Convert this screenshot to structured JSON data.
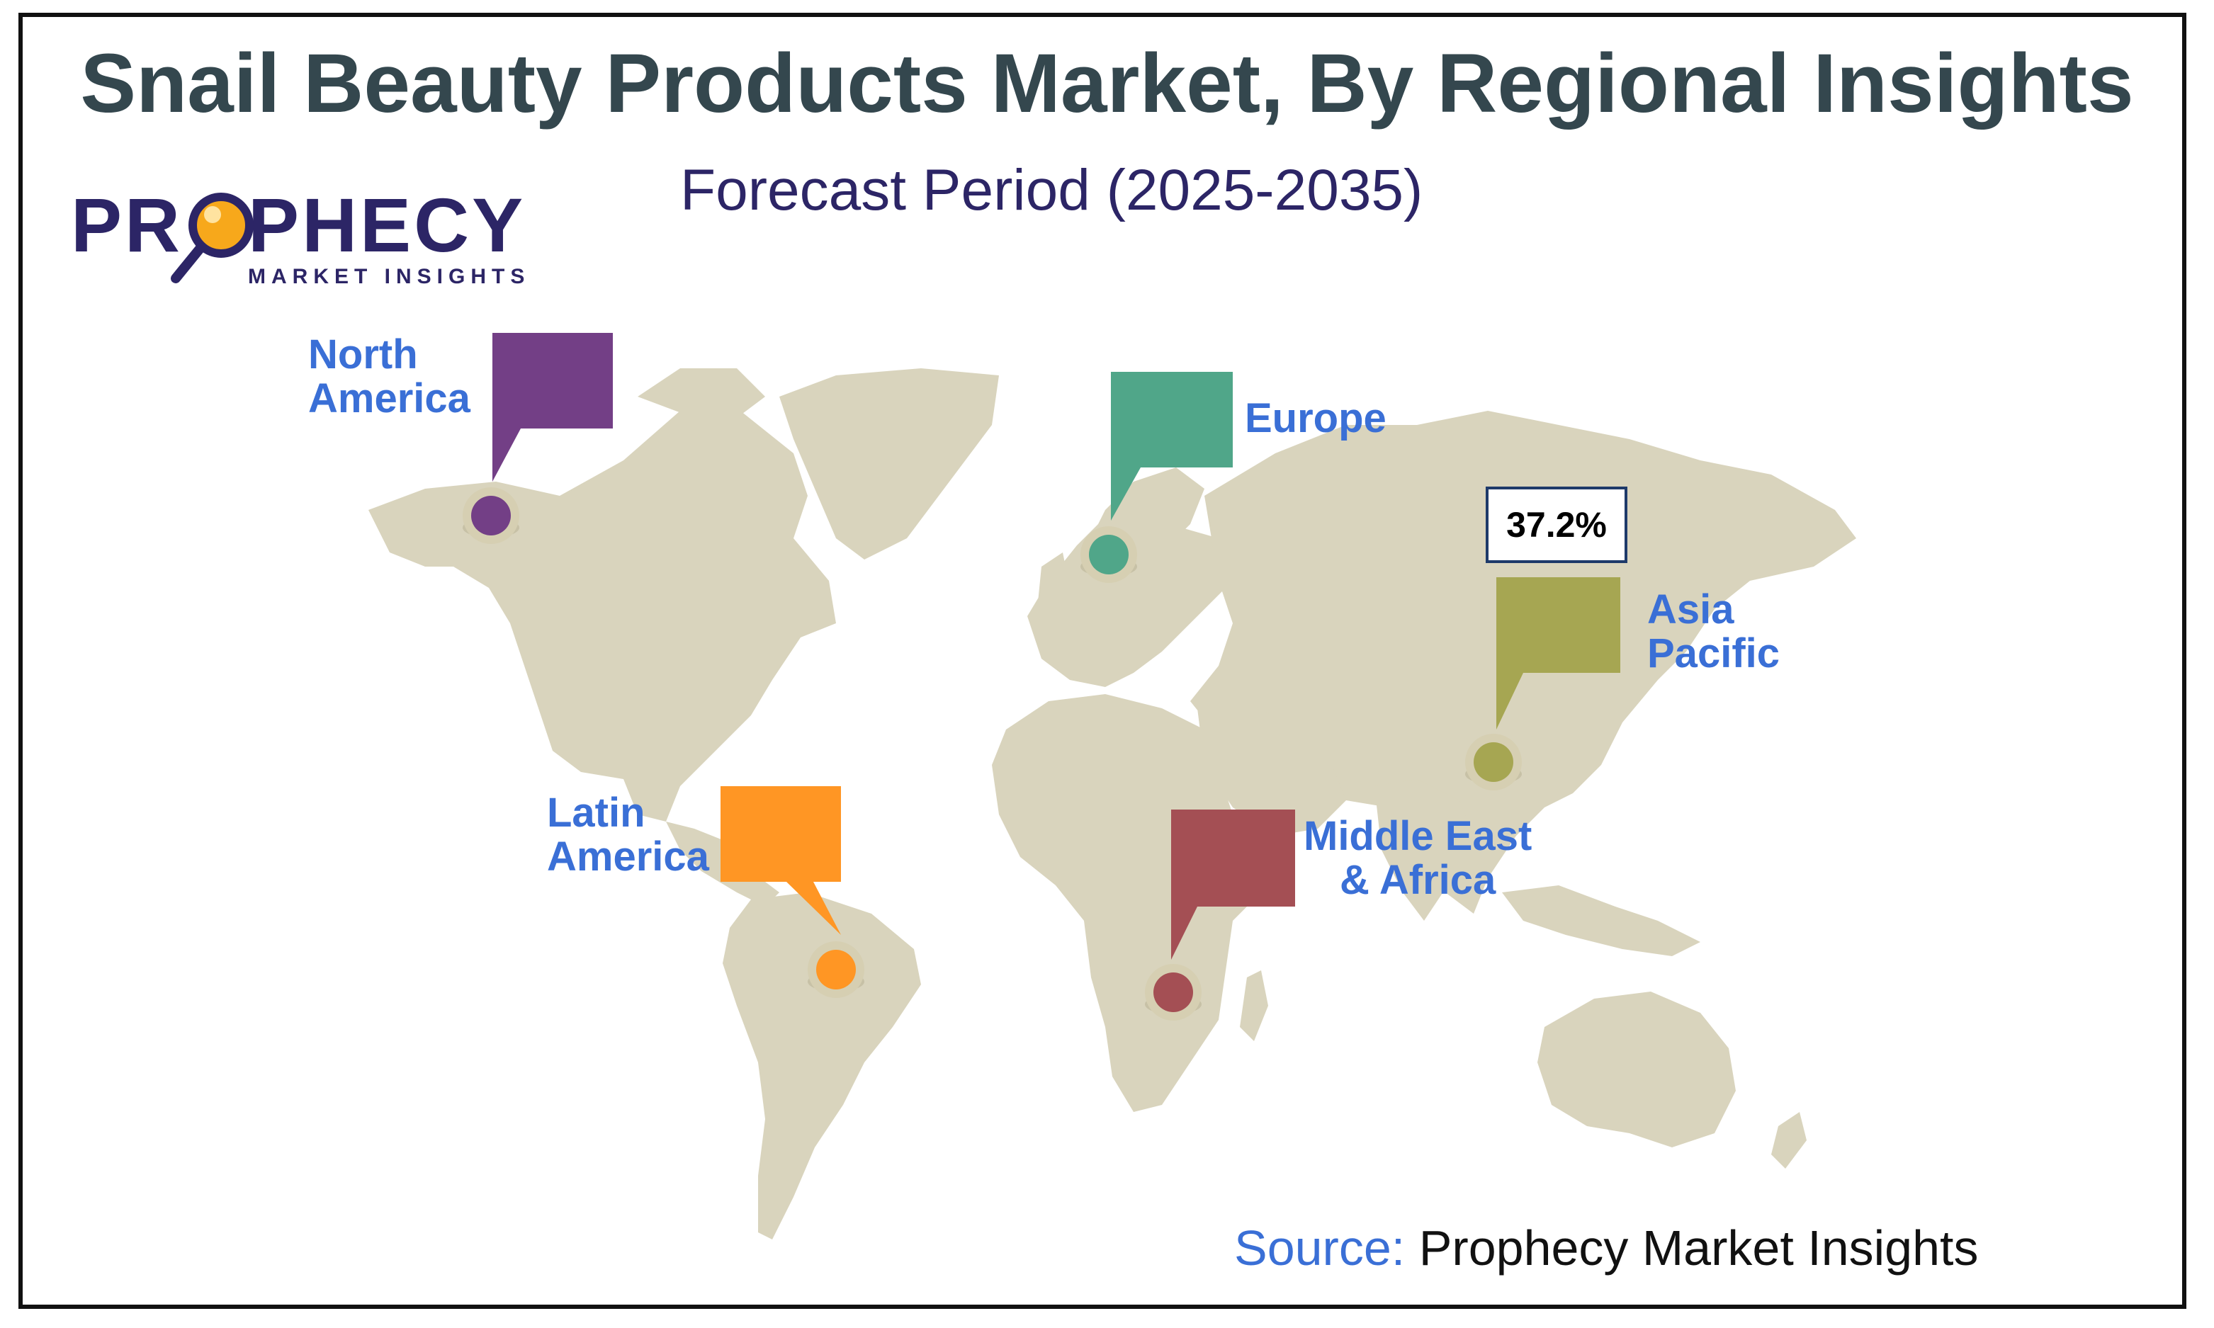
{
  "title": "Snail Beauty Products Market, By Regional Insights",
  "subtitle": "Forecast Period (2025-2035)",
  "logo": {
    "brand_prefix": "PR",
    "brand_suffix": "PHECY",
    "tagline": "MARKET INSIGHTS"
  },
  "colors": {
    "title": "#34474e",
    "subtitle": "#2c2566",
    "label": "#3a6fd6",
    "land": "#d9d4bd",
    "north_america": "#733f86",
    "europe": "#50a689",
    "asia_pacific": "#a6a652",
    "latin_america": "#ff9624",
    "middle_east_africa": "#a44f54"
  },
  "regions": [
    {
      "id": "north_america",
      "line1": "North",
      "line2": "America",
      "color": "#733f86"
    },
    {
      "id": "europe",
      "line1": "Europe",
      "line2": "",
      "color": "#50a689"
    },
    {
      "id": "asia_pacific",
      "line1": "Asia",
      "line2": "Pacific",
      "color": "#a6a652",
      "value": "37.2%"
    },
    {
      "id": "latin_america",
      "line1": "Latin",
      "line2": "America",
      "color": "#ff9624"
    },
    {
      "id": "middle_east_africa",
      "line1": "Middle East",
      "line2": "& Africa",
      "color": "#a44f54"
    }
  ],
  "highlight_value": "37.2%",
  "source": {
    "label": "Source:",
    "value": "Prophecy Market Insights"
  }
}
